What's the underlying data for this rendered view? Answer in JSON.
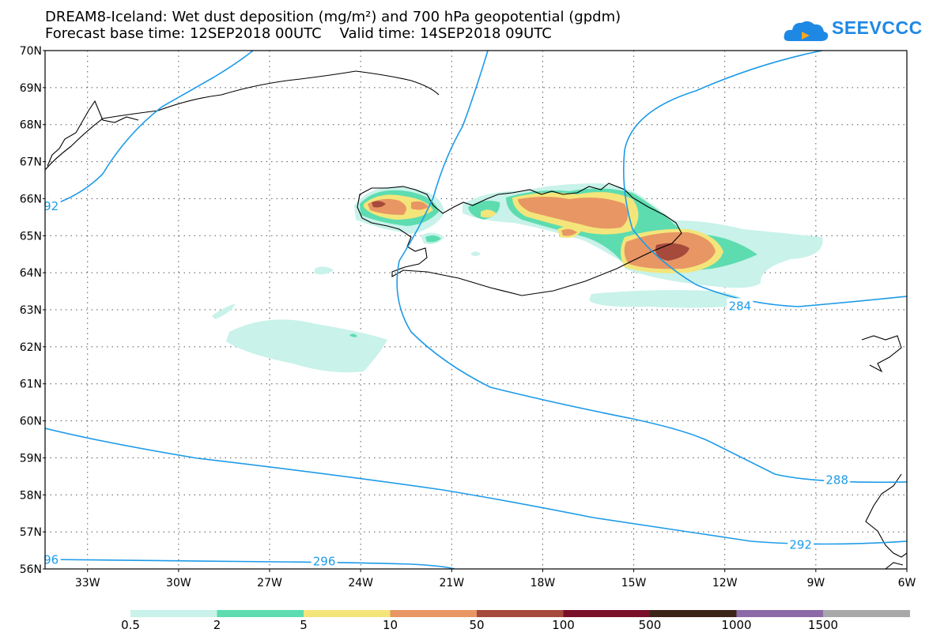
{
  "header": {
    "title_line1": "DREAM8-Iceland: Wet dust deposition (mg/m²) and 700 hPa geopotential (gpdm)",
    "title_line2": "Forecast base time: 12SEP2018 00UTC    Valid time: 14SEP2018 09UTC"
  },
  "logo": {
    "text": "SEEVCCC",
    "icon": "cloud-logo-icon"
  },
  "map": {
    "lat_labels": [
      "70N",
      "69N",
      "68N",
      "67N",
      "66N",
      "65N",
      "64N",
      "63N",
      "62N",
      "61N",
      "60N",
      "59N",
      "58N",
      "57N",
      "56N"
    ],
    "lon_labels": [
      "33W",
      "30W",
      "27W",
      "24W",
      "21W",
      "18W",
      "15W",
      "12W",
      "9W",
      "6W"
    ],
    "lat_range": [
      56,
      70
    ],
    "lon_range": [
      -34.4,
      -6
    ],
    "grid": true
  },
  "contours": {
    "labels": [
      {
        "text": "92",
        "lon": -34.2,
        "lat": 65.8
      },
      {
        "text": "284",
        "lon": -11.5,
        "lat": 63.1
      },
      {
        "text": "288",
        "lon": -8.3,
        "lat": 58.4
      },
      {
        "text": "292",
        "lon": -9.5,
        "lat": 56.65
      },
      {
        "text": "96",
        "lon": -34.2,
        "lat": 56.25
      },
      {
        "text": "296",
        "lon": -25.2,
        "lat": 56.2
      }
    ]
  },
  "colorbar": {
    "labels": [
      "0.5",
      "2",
      "5",
      "10",
      "50",
      "100",
      "500",
      "1000",
      "1500"
    ],
    "colors": [
      "#c8f2ea",
      "#5ddcb0",
      "#f4e57a",
      "#e89664",
      "#a64a3c",
      "#7a0f2a",
      "#3c2418",
      "#8c6aa8",
      "#a8a8a8"
    ]
  }
}
